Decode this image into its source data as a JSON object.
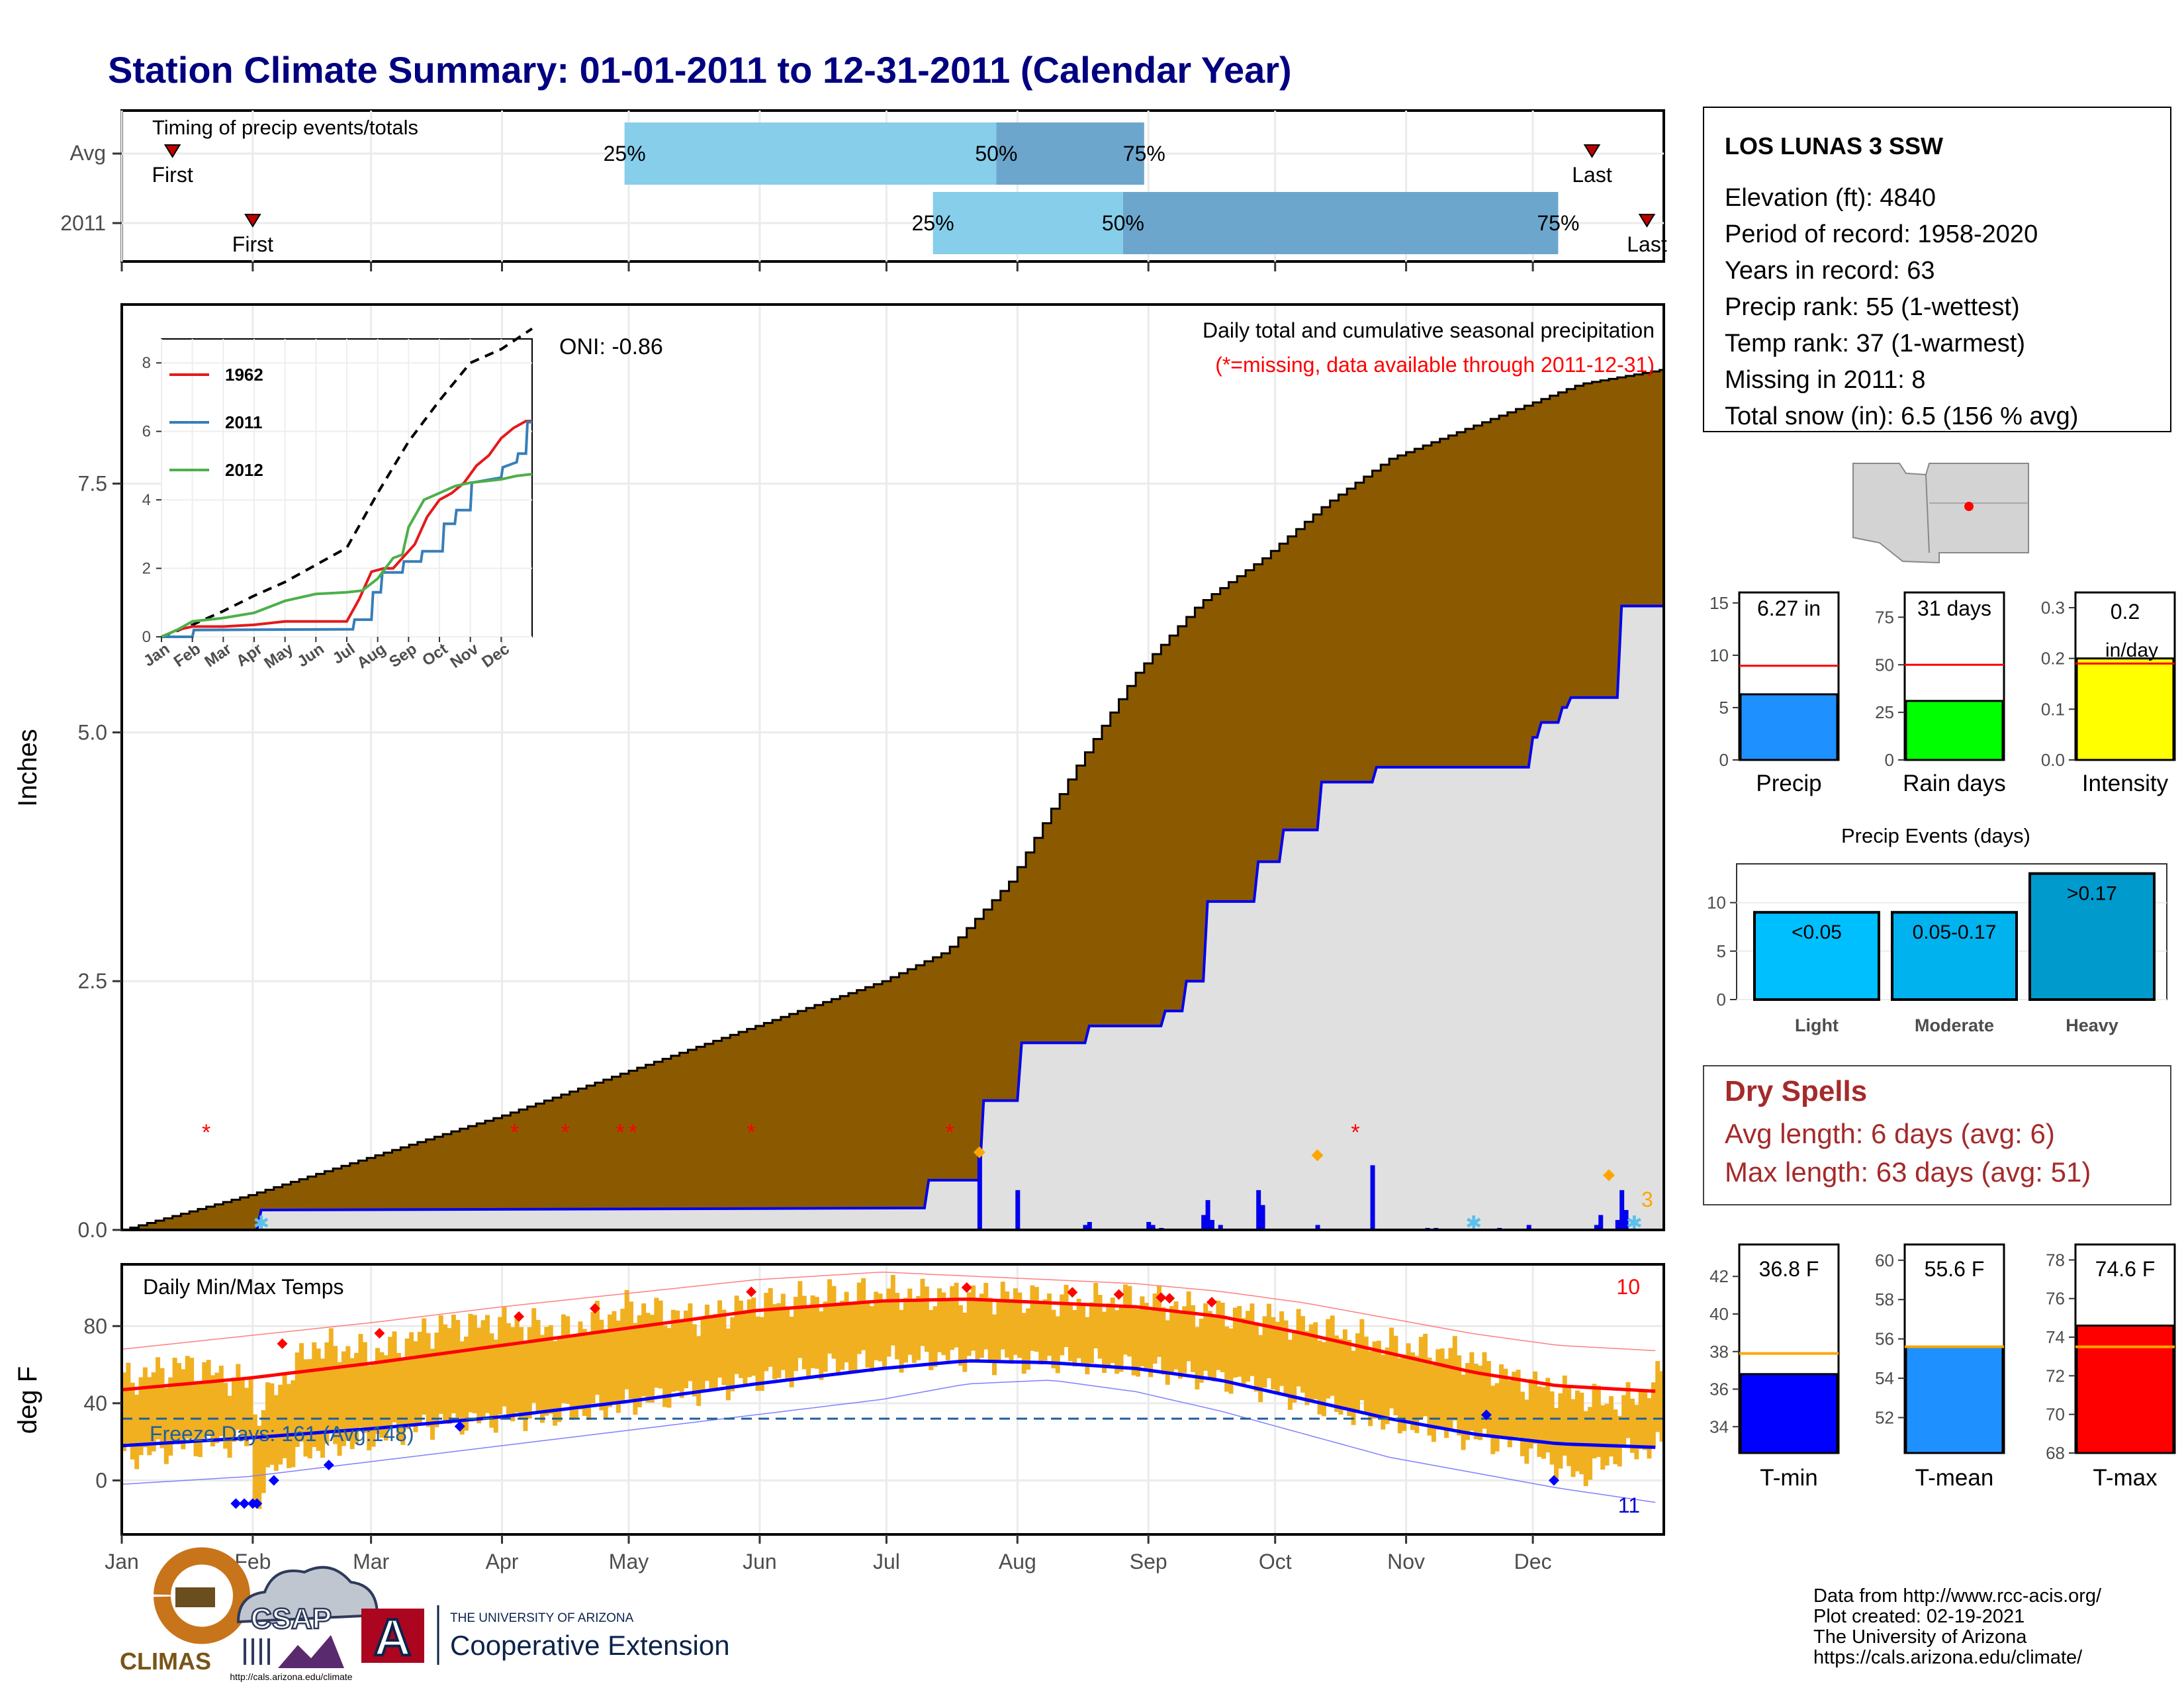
{
  "title": "Station Climate Summary: 01-01-2011 to 12-31-2011 (Calendar Year)",
  "colors": {
    "title": "#000080",
    "precip_fill": "#8B5A00",
    "year_fill": "#E0E0E0",
    "year_line": "#0000EE",
    "timing_light": "#87CEEB",
    "timing_dark": "#6CA6CD",
    "temp_bar": "#F0B020",
    "tmax": "#FF0000",
    "tmin": "#0000FF",
    "dry_spell": "#A52A2A"
  },
  "timing_panel": {
    "header": "Timing of precip events/totals",
    "y_labels": [
      "Avg",
      "2011"
    ],
    "avg": {
      "first": "01-13",
      "q25": "04-30",
      "q50": "07-27",
      "q75": "08-31",
      "last": "12-15",
      "first_label": "First",
      "q25_label": "25%",
      "q50_label": "50%",
      "q75_label": "75%",
      "last_label": "Last"
    },
    "y2011": {
      "first": "02-01",
      "q25": "07-12",
      "q50": "08-26",
      "q75": "12-07",
      "last": "12-28",
      "first_label": "First",
      "q25_label": "25%",
      "q50_label": "50%",
      "q75_label": "75%",
      "last_label": "Last"
    }
  },
  "precip_panel": {
    "ylabel": "Inches",
    "ytick_labels": [
      "0.0",
      "2.5",
      "5.0",
      "7.5"
    ],
    "oni": "ONI: -0.86",
    "note1": "Daily total and cumulative seasonal precipitation",
    "note2": "(*=missing, data available through 2011-12-31)",
    "count_label": "3",
    "missing_marks_days": [
      20,
      93,
      105,
      118,
      121,
      149,
      196,
      292
    ]
  },
  "inset": {
    "ytick_labels": [
      "0",
      "2",
      "4",
      "6",
      "8"
    ],
    "month_labels": [
      "Jan",
      "Feb",
      "Mar",
      "Apr",
      "May",
      "Jun",
      "Jul",
      "Aug",
      "Sep",
      "Oct",
      "Nov",
      "Dec"
    ],
    "legend": [
      "1962",
      "2011",
      "2012"
    ],
    "colors": [
      "#E41A1C",
      "#377EB8",
      "#4DAF4A"
    ]
  },
  "temp_panel": {
    "ylabel": "deg F",
    "header": "Daily Min/Max Temps",
    "ytick_labels": [
      "0",
      "40",
      "80"
    ],
    "freeze": "Freeze Days: 161 (Avg:148)",
    "record_high_count": "10",
    "record_low_count": "11"
  },
  "month_labels": [
    "Jan",
    "Feb",
    "Mar",
    "Apr",
    "May",
    "Jun",
    "Jul",
    "Aug",
    "Sep",
    "Oct",
    "Nov",
    "Dec"
  ],
  "station": {
    "name": "LOS LUNAS 3 SSW",
    "lines": [
      "Elevation (ft): 4840",
      "Period of record: 1958-2020",
      "Years in record: 63",
      "Precip rank: 55 (1-wettest)",
      "Temp rank: 37 (1-warmest)",
      "Missing in 2011: 8",
      "Total snow (in): 6.5 (156 % avg)"
    ]
  },
  "mini_bars": [
    {
      "label": "Precip",
      "value_text": "6.27 in",
      "value": 6.27,
      "avg": 9.0,
      "ymax": 16,
      "ticks": [
        "0",
        "5",
        "10",
        "15"
      ],
      "tick_vals": [
        0,
        5,
        10,
        15
      ],
      "color": "#1E90FF"
    },
    {
      "label": "Rain days",
      "value_text": "31 days",
      "value": 31,
      "avg": 50,
      "ymax": 88,
      "ticks": [
        "0",
        "25",
        "50",
        "75"
      ],
      "tick_vals": [
        0,
        25,
        50,
        75
      ],
      "color": "#00FF00"
    },
    {
      "label": "Intensity",
      "value_text": "0.2 in/day",
      "value": 0.2,
      "avg": 0.19,
      "ymax": 0.33,
      "ticks": [
        "0.0",
        "0.1",
        "0.2",
        "0.3"
      ],
      "tick_vals": [
        0,
        0.1,
        0.2,
        0.3
      ],
      "color": "#FFFF00"
    }
  ],
  "precip_events": {
    "title": "Precip Events (days)",
    "ticks": [
      "0",
      "5",
      "10"
    ],
    "tick_vals": [
      0,
      5,
      10
    ],
    "ymax": 14,
    "categories": [
      "Light",
      "Moderate",
      "Heavy"
    ],
    "bar_labels": [
      "<0.05",
      "0.05-0.17",
      ">0.17"
    ],
    "values": [
      9,
      9,
      13
    ],
    "colors": [
      "#00BFFF",
      "#00B2EE",
      "#009ACD"
    ]
  },
  "dry_spells": {
    "title": "Dry Spells",
    "avg": "Avg length: 6 days (avg: 6)",
    "max": "Max length: 63 days (avg: 51)"
  },
  "temp_bars": [
    {
      "label": "T-min",
      "value_text": "36.8 F",
      "value": 36.8,
      "avg": 37.9,
      "ymin": 32.6,
      "ymax": 43.7,
      "ticks": [
        "34",
        "36",
        "38",
        "40",
        "42"
      ],
      "tick_vals": [
        34,
        36,
        38,
        40,
        42
      ],
      "color": "#0000FF"
    },
    {
      "label": "T-mean",
      "value_text": "55.6 F",
      "value": 55.6,
      "avg": 55.6,
      "ymin": 50.2,
      "ymax": 60.8,
      "ticks": [
        "52",
        "54",
        "56",
        "58",
        "60"
      ],
      "tick_vals": [
        52,
        54,
        56,
        58,
        60
      ],
      "color": "#1E90FF"
    },
    {
      "label": "T-max",
      "value_text": "74.6 F",
      "value": 74.6,
      "avg": 73.5,
      "ymin": 68,
      "ymax": 78.8,
      "ticks": [
        "68",
        "70",
        "72",
        "74",
        "76",
        "78"
      ],
      "tick_vals": [
        68,
        70,
        72,
        74,
        76,
        78
      ],
      "color": "#FF0000"
    }
  ],
  "footer": {
    "lines": [
      "Data from http://www.rcc-acis.org/",
      "Plot created: 02-19-2021",
      "The University of Arizona",
      "https://cals.arizona.edu/climate/"
    ],
    "logos": {
      "climas": "CLIMAS",
      "csap": "CSAP",
      "csap_url": "http://cals.arizona.edu/climate",
      "ua_small": "THE UNIVERSITY OF ARIZONA",
      "ua_big": "Cooperative Extension",
      "ua_letter": "A"
    }
  },
  "chart_data": [
    {
      "type": "area",
      "title": "Daily total and cumulative seasonal precipitation",
      "ylabel": "Inches",
      "ylim": [
        0,
        9.3
      ],
      "x_unit": "day of year",
      "series": [
        {
          "name": "Average cumulative",
          "x": [
            0,
            30,
            60,
            90,
            120,
            150,
            180,
            195,
            210,
            225,
            240,
            255,
            270,
            285,
            300,
            315,
            330,
            345,
            365
          ],
          "values": [
            0,
            0.35,
            0.75,
            1.15,
            1.6,
            2.05,
            2.5,
            2.8,
            3.5,
            4.6,
            5.6,
            6.3,
            6.75,
            7.3,
            7.75,
            8.0,
            8.25,
            8.5,
            8.65
          ]
        },
        {
          "name": "2011",
          "x": [
            0,
            32,
            33,
            190,
            191,
            203,
            204,
            212,
            213,
            228,
            229,
            246,
            247,
            251,
            252,
            256,
            257,
            268,
            269,
            274,
            275,
            283,
            284,
            296,
            297,
            333,
            334,
            335,
            336,
            340,
            341,
            342,
            343,
            354,
            355,
            365
          ],
          "values": [
            0,
            0,
            0.2,
            0.22,
            0.5,
            0.5,
            1.3,
            1.3,
            1.88,
            1.88,
            2.05,
            2.05,
            2.2,
            2.2,
            2.5,
            2.5,
            3.3,
            3.3,
            3.7,
            3.7,
            4.02,
            4.02,
            4.5,
            4.5,
            4.65,
            4.65,
            4.95,
            4.95,
            5.1,
            5.1,
            5.25,
            5.25,
            5.35,
            5.35,
            6.27,
            6.27
          ]
        },
        {
          "name": "Daily precipitation",
          "x": [
            203,
            212,
            228,
            229,
            243,
            244,
            246,
            256,
            257,
            258,
            260,
            269,
            270,
            283,
            296,
            309,
            311,
            326,
            333,
            349,
            350,
            354,
            355,
            356
          ],
          "values": [
            0.78,
            0.4,
            0.05,
            0.08,
            0.08,
            0.05,
            0.02,
            0.15,
            0.3,
            0.1,
            0.05,
            0.4,
            0.25,
            0.05,
            0.65,
            0.02,
            0.02,
            0.02,
            0.05,
            0.05,
            0.15,
            0.1,
            0.4,
            0.2
          ]
        }
      ]
    },
    {
      "type": "line",
      "title": "",
      "ylim": [
        0,
        8.7
      ],
      "categories": [
        "Jan",
        "Feb",
        "Mar",
        "Apr",
        "May",
        "Jun",
        "Jul",
        "Aug",
        "Sep",
        "Oct",
        "Nov",
        "Dec"
      ],
      "x_unit": "month",
      "series": [
        {
          "name": "Average",
          "x": [
            0,
            1,
            2,
            3,
            4,
            5,
            6,
            7,
            8,
            9,
            10,
            11,
            12
          ],
          "values": [
            0,
            0.35,
            0.75,
            1.2,
            1.6,
            2.1,
            2.6,
            4.2,
            5.7,
            6.9,
            8.0,
            8.4,
            9.0
          ]
        },
        {
          "name": "1962",
          "x": [
            0,
            0.5,
            1,
            2,
            3,
            4,
            5,
            5.5,
            6.0,
            6.4,
            6.8,
            7.2,
            7.5,
            7.8,
            8.2,
            8.6,
            9.0,
            9.4,
            9.8,
            10.2,
            10.6,
            11,
            11.4,
            11.8,
            12
          ],
          "values": [
            0,
            0.2,
            0.3,
            0.3,
            0.35,
            0.45,
            0.45,
            0.45,
            0.45,
            1.1,
            1.9,
            2.0,
            2.0,
            2.3,
            2.7,
            3.5,
            4.0,
            4.2,
            4.5,
            5.0,
            5.3,
            5.8,
            6.1,
            6.3,
            6.3
          ]
        },
        {
          "name": "2011",
          "x": [
            0,
            1.0,
            1.05,
            6.2,
            6.25,
            6.8,
            6.85,
            7.1,
            7.15,
            7.8,
            7.85,
            8.4,
            8.45,
            9.1,
            9.15,
            9.5,
            9.55,
            10.0,
            10.05,
            11.0,
            11.05,
            11.5,
            11.55,
            11.8,
            11.85,
            12
          ],
          "values": [
            0,
            0,
            0.2,
            0.22,
            0.5,
            0.5,
            1.3,
            1.3,
            1.88,
            1.88,
            2.2,
            2.2,
            2.5,
            2.5,
            3.3,
            3.3,
            3.7,
            3.7,
            4.5,
            4.65,
            4.95,
            5.1,
            5.35,
            5.35,
            6.27,
            6.27
          ]
        },
        {
          "name": "2012",
          "x": [
            0,
            0.5,
            1,
            2,
            3,
            4,
            5,
            6,
            6.5,
            7.0,
            7.5,
            7.8,
            8.0,
            8.5,
            9.0,
            9.5,
            10.0,
            10.5,
            11.0,
            11.5,
            12
          ],
          "values": [
            0,
            0.2,
            0.45,
            0.55,
            0.7,
            1.05,
            1.25,
            1.3,
            1.35,
            1.7,
            2.3,
            2.4,
            3.2,
            4.0,
            4.2,
            4.4,
            4.5,
            4.55,
            4.6,
            4.7,
            4.75
          ]
        }
      ]
    },
    {
      "type": "bar",
      "title": "Daily Min/Max Temps",
      "ylabel": "deg F",
      "ylim": [
        -28,
        112
      ],
      "x_unit": "day of year",
      "series": [
        {
          "name": "Normal max",
          "x": [
            0,
            30,
            60,
            90,
            120,
            150,
            180,
            200,
            220,
            240,
            260,
            280,
            300,
            320,
            340,
            365
          ],
          "values": [
            47,
            53,
            61,
            70,
            79,
            88,
            93,
            94,
            92,
            90,
            85,
            76,
            66,
            56,
            49,
            46
          ]
        },
        {
          "name": "Normal min",
          "x": [
            0,
            30,
            60,
            90,
            120,
            150,
            180,
            200,
            220,
            240,
            260,
            280,
            300,
            320,
            340,
            365
          ],
          "values": [
            18,
            22,
            27,
            33,
            41,
            50,
            58,
            62,
            61,
            58,
            52,
            42,
            32,
            24,
            19,
            17
          ]
        },
        {
          "name": "Record max",
          "x": [
            0,
            30,
            60,
            90,
            120,
            150,
            180,
            200,
            220,
            240,
            260,
            280,
            300,
            320,
            340,
            365
          ],
          "values": [
            68,
            75,
            82,
            90,
            97,
            104,
            108,
            106,
            104,
            102,
            98,
            92,
            84,
            76,
            70,
            67
          ]
        },
        {
          "name": "Record min",
          "x": [
            0,
            30,
            60,
            90,
            120,
            150,
            180,
            200,
            220,
            240,
            260,
            280,
            300,
            320,
            340,
            365
          ],
          "values": [
            -2,
            2,
            10,
            18,
            26,
            34,
            42,
            50,
            52,
            46,
            36,
            24,
            12,
            4,
            -4,
            -12
          ]
        },
        {
          "name": "Observed max",
          "x": [
            0,
            15,
            30,
            31,
            36,
            45,
            60,
            75,
            90,
            105,
            120,
            135,
            150,
            165,
            180,
            195,
            210,
            225,
            240,
            255,
            270,
            285,
            300,
            315,
            330,
            345,
            355,
            365
          ],
          "values": [
            52,
            60,
            50,
            34,
            48,
            70,
            66,
            80,
            82,
            78,
            90,
            84,
            92,
            95,
            97,
            96,
            96,
            92,
            94,
            88,
            85,
            78,
            70,
            66,
            52,
            44,
            40,
            55
          ]
        },
        {
          "name": "Observed min",
          "x": [
            0,
            15,
            30,
            31,
            36,
            45,
            60,
            75,
            90,
            105,
            120,
            135,
            150,
            165,
            180,
            195,
            210,
            225,
            240,
            255,
            270,
            285,
            300,
            315,
            330,
            345,
            355,
            365
          ],
          "values": [
            12,
            18,
            20,
            -12,
            8,
            16,
            22,
            30,
            32,
            34,
            40,
            46,
            52,
            58,
            62,
            64,
            62,
            62,
            58,
            54,
            48,
            38,
            30,
            24,
            18,
            2,
            14,
            18
          ]
        }
      ]
    }
  ]
}
